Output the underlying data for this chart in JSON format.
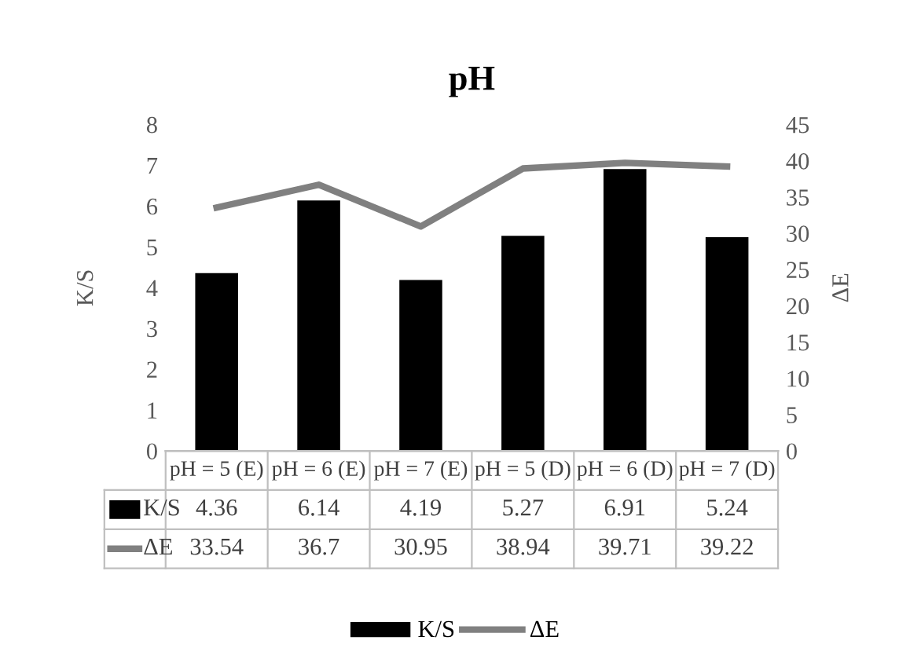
{
  "chart_data": {
    "type": "bar",
    "title": "pH",
    "ylabel": "K/S",
    "y2label": "ΔE",
    "categories": [
      "pH = 5 (E)",
      "pH = 6 (E)",
      "pH = 7 (E)",
      "pH = 5 (D)",
      "pH = 6 (D)",
      "pH = 7 (D)"
    ],
    "series": [
      {
        "name": "K/S",
        "color": "#000000",
        "values": [
          4.36,
          6.14,
          4.19,
          5.27,
          6.91,
          5.24
        ]
      },
      {
        "name": "ΔE",
        "type": "line",
        "axis": "y2",
        "color": "#808080",
        "values": [
          33.54,
          36.7,
          30.95,
          38.94,
          39.71,
          39.22
        ]
      }
    ],
    "ylim": [
      0,
      8
    ],
    "yticks": [
      0,
      1,
      2,
      3,
      4,
      5,
      6,
      7,
      8
    ],
    "y2lim": [
      0,
      45
    ],
    "y2ticks": [
      0,
      5,
      10,
      15,
      20,
      25,
      30,
      35,
      40,
      45
    ],
    "data_labels": true,
    "legend": "bottom",
    "grid": false,
    "marker": "none",
    "line_style": "solid"
  }
}
